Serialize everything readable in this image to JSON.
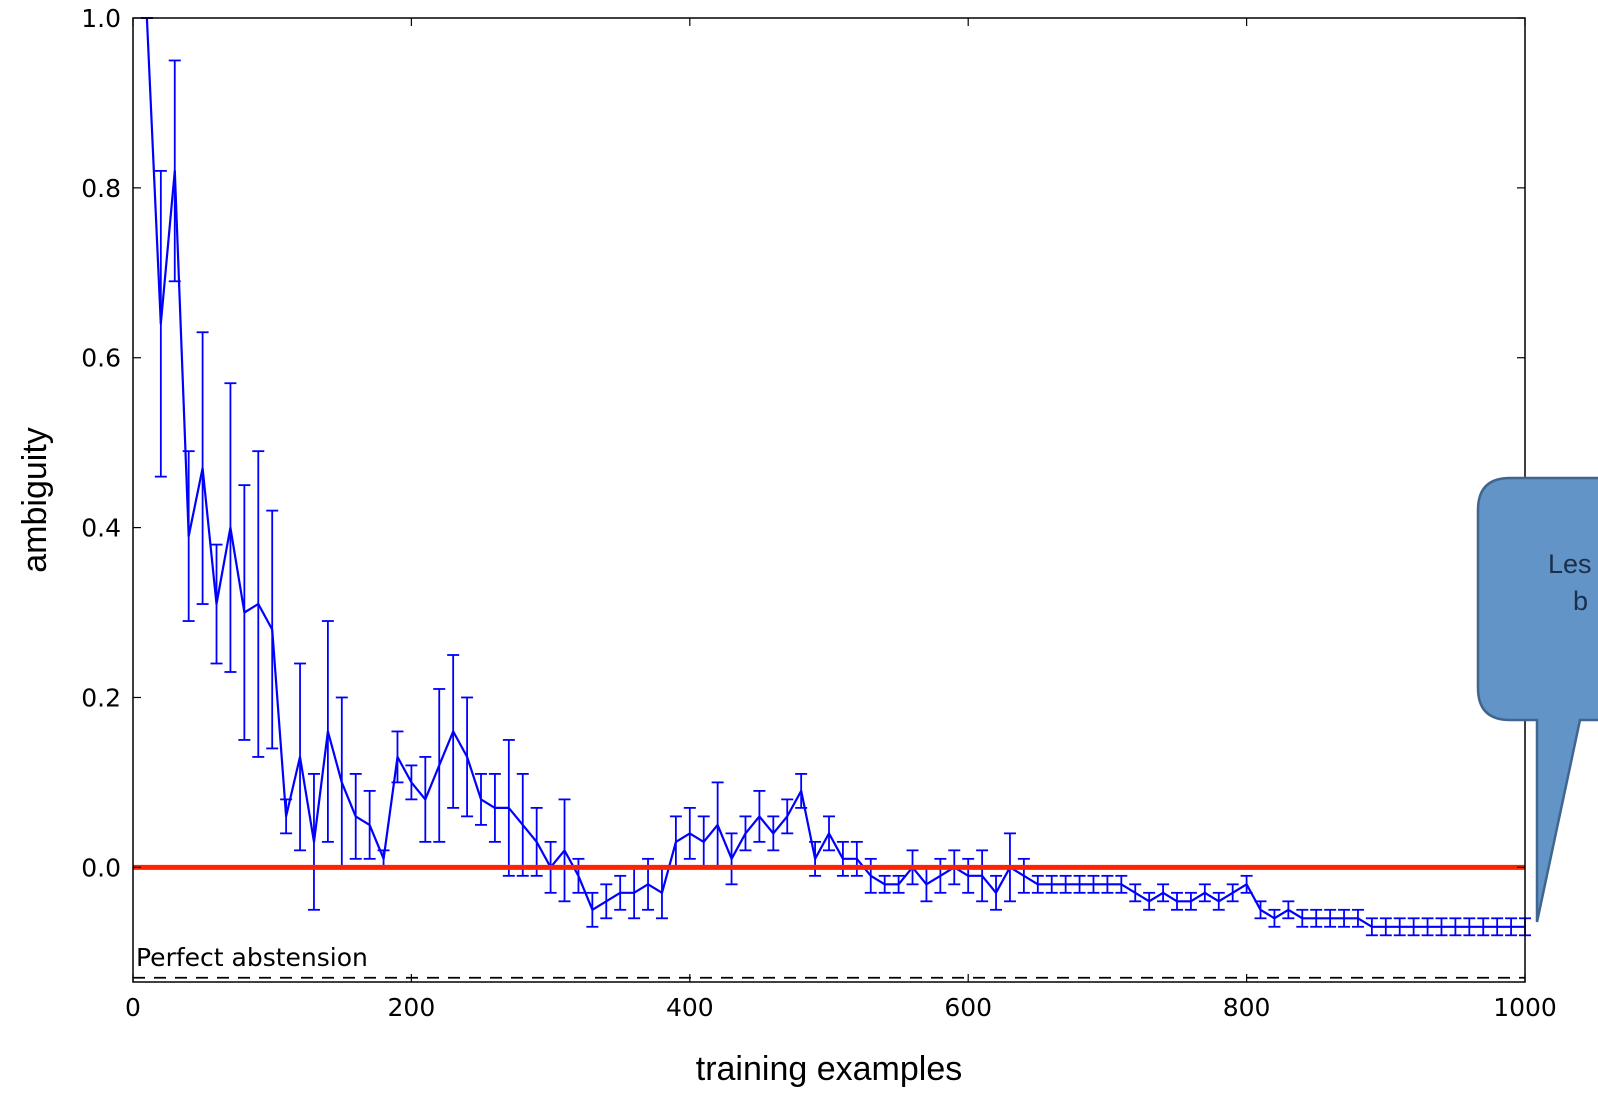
{
  "chart_data": {
    "type": "line",
    "xlabel": "training examples",
    "ylabel": "ambiguity",
    "xlim": [
      0,
      1000
    ],
    "ylim": [
      -0.135,
      1.0
    ],
    "x_ticks": [
      0,
      200,
      400,
      600,
      800,
      1000
    ],
    "y_ticks": [
      0.0,
      0.2,
      0.4,
      0.6,
      0.8,
      1.0
    ],
    "x_tick_labels": [
      "0",
      "200",
      "400",
      "600",
      "800",
      "1000"
    ],
    "y_tick_labels": [
      "0.0",
      "0.2",
      "0.4",
      "0.6",
      "0.8",
      "1.0"
    ],
    "grid": false,
    "series": [
      {
        "color": "#0000ff",
        "x": [
          10,
          20,
          30,
          40,
          50,
          60,
          70,
          80,
          90,
          100,
          110,
          120,
          130,
          140,
          150,
          160,
          170,
          180,
          190,
          200,
          210,
          220,
          230,
          240,
          250,
          260,
          270,
          280,
          290,
          300,
          310,
          320,
          330,
          340,
          350,
          360,
          370,
          380,
          390,
          400,
          410,
          420,
          430,
          440,
          450,
          460,
          470,
          480,
          490,
          500,
          510,
          520,
          530,
          540,
          550,
          560,
          570,
          580,
          590,
          600,
          610,
          620,
          630,
          640,
          650,
          660,
          670,
          680,
          690,
          700,
          710,
          720,
          730,
          740,
          750,
          760,
          770,
          780,
          790,
          800,
          810,
          820,
          830,
          840,
          850,
          860,
          870,
          880,
          890,
          900,
          910,
          920,
          930,
          940,
          950,
          960,
          970,
          980,
          990,
          1000
        ],
        "y": [
          1.0,
          0.64,
          0.82,
          0.39,
          0.47,
          0.31,
          0.4,
          0.3,
          0.31,
          0.28,
          0.06,
          0.13,
          0.03,
          0.16,
          0.1,
          0.06,
          0.05,
          0.01,
          0.13,
          0.1,
          0.08,
          0.12,
          0.16,
          0.13,
          0.08,
          0.07,
          0.07,
          0.05,
          0.03,
          0.0,
          0.02,
          -0.01,
          -0.05,
          -0.04,
          -0.03,
          -0.03,
          -0.02,
          -0.03,
          0.03,
          0.04,
          0.03,
          0.05,
          0.01,
          0.04,
          0.06,
          0.04,
          0.06,
          0.09,
          0.01,
          0.04,
          0.01,
          0.01,
          -0.01,
          -0.02,
          -0.02,
          0.0,
          -0.02,
          -0.01,
          0.0,
          -0.01,
          -0.01,
          -0.03,
          0.0,
          -0.01,
          -0.02,
          -0.02,
          -0.02,
          -0.02,
          -0.02,
          -0.02,
          -0.02,
          -0.03,
          -0.04,
          -0.03,
          -0.04,
          -0.04,
          -0.03,
          -0.04,
          -0.03,
          -0.02,
          -0.05,
          -0.06,
          -0.05,
          -0.06,
          -0.06,
          -0.06,
          -0.06,
          -0.06,
          -0.07,
          -0.07,
          -0.07,
          -0.07,
          -0.07,
          -0.07,
          -0.07,
          -0.07,
          -0.07,
          -0.07,
          -0.07,
          -0.07
        ],
        "err": [
          0.0,
          0.18,
          0.13,
          0.1,
          0.16,
          0.07,
          0.17,
          0.15,
          0.18,
          0.14,
          0.02,
          0.11,
          0.08,
          0.13,
          0.1,
          0.05,
          0.04,
          0.01,
          0.03,
          0.02,
          0.05,
          0.09,
          0.09,
          0.07,
          0.03,
          0.04,
          0.08,
          0.06,
          0.04,
          0.03,
          0.06,
          0.02,
          0.02,
          0.02,
          0.02,
          0.03,
          0.03,
          0.03,
          0.03,
          0.03,
          0.03,
          0.05,
          0.03,
          0.02,
          0.03,
          0.02,
          0.02,
          0.02,
          0.02,
          0.02,
          0.02,
          0.02,
          0.02,
          0.01,
          0.01,
          0.02,
          0.02,
          0.02,
          0.02,
          0.02,
          0.03,
          0.02,
          0.04,
          0.02,
          0.01,
          0.01,
          0.01,
          0.01,
          0.01,
          0.01,
          0.01,
          0.01,
          0.01,
          0.01,
          0.01,
          0.01,
          0.01,
          0.01,
          0.01,
          0.01,
          0.01,
          0.01,
          0.01,
          0.01,
          0.01,
          0.01,
          0.01,
          0.01,
          0.01,
          0.01,
          0.01,
          0.01,
          0.01,
          0.01,
          0.01,
          0.01,
          0.01,
          0.01,
          0.01,
          0.01
        ]
      }
    ],
    "reference_lines": [
      {
        "y": 0.0,
        "color": "#ff2200",
        "style": "solid"
      },
      {
        "y": -0.13,
        "color": "#000000",
        "style": "dashed",
        "label": "Perfect abstension"
      }
    ],
    "annotations": [
      {
        "text": "Perfect abstension"
      }
    ],
    "callout": {
      "lines": [
        "Les",
        "b"
      ],
      "fill": "#6294c8",
      "stroke": "#41668e"
    }
  }
}
